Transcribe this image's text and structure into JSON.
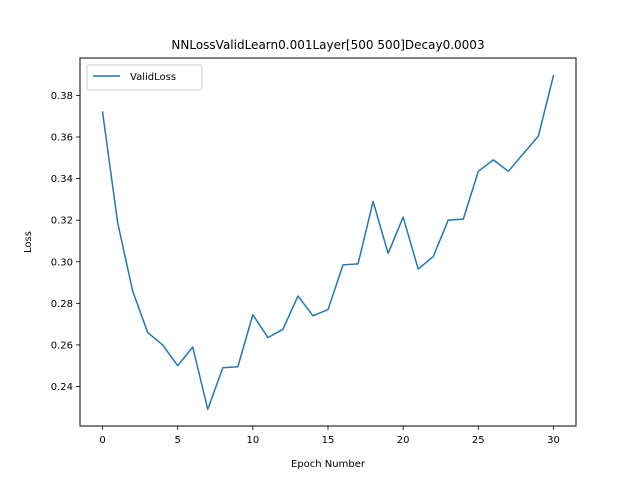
{
  "chart_data": {
    "type": "line",
    "title": "NNLossValidLearn0.001Layer[500 500]Decay0.0003",
    "xlabel": "Epoch Number",
    "ylabel": "Loss",
    "xlim": [
      -1.5,
      31.5
    ],
    "ylim": [
      0.221,
      0.398
    ],
    "xticks": [
      0,
      5,
      10,
      15,
      20,
      25,
      30
    ],
    "yticks": [
      0.24,
      0.26,
      0.28,
      0.3,
      0.32,
      0.34,
      0.36,
      0.38
    ],
    "ytick_labels": [
      "0.24",
      "0.26",
      "0.28",
      "0.30",
      "0.32",
      "0.34",
      "0.36",
      "0.38"
    ],
    "grid": false,
    "legend": {
      "position": "upper-left"
    },
    "series": [
      {
        "name": "ValidLoss",
        "color": "#1f77b4",
        "x": [
          0,
          1,
          2,
          3,
          4,
          5,
          6,
          7,
          8,
          9,
          10,
          11,
          12,
          13,
          14,
          15,
          16,
          17,
          18,
          19,
          20,
          21,
          22,
          23,
          24,
          25,
          26,
          27,
          28,
          29,
          30
        ],
        "values": [
          0.372,
          0.319,
          0.286,
          0.266,
          0.26,
          0.25,
          0.259,
          0.229,
          0.249,
          0.2495,
          0.2745,
          0.2635,
          0.2675,
          0.2835,
          0.274,
          0.277,
          0.2985,
          0.299,
          0.329,
          0.304,
          0.3215,
          0.2965,
          0.3025,
          0.32,
          0.3205,
          0.3435,
          0.349,
          0.3435,
          0.352,
          0.3605,
          0.3895
        ]
      }
    ]
  }
}
